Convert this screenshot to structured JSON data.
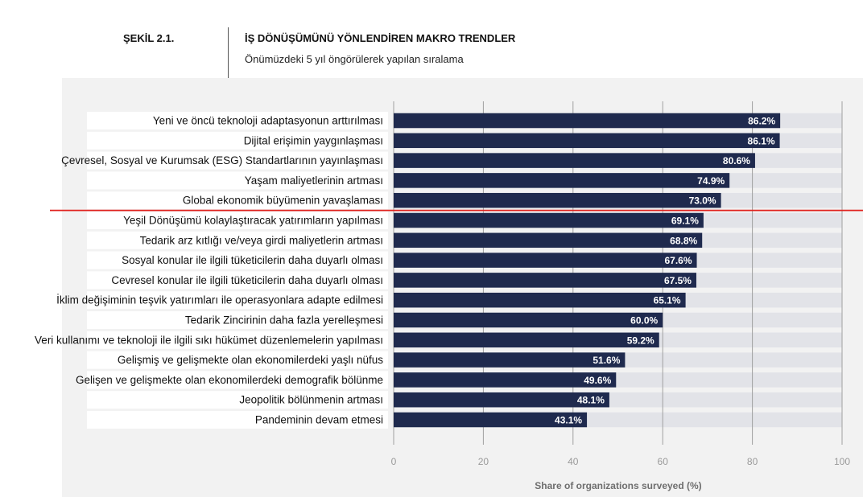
{
  "figure": {
    "label": "ŞEKİL 2.1.",
    "title": "İŞ DÖNÜŞÜMÜNÜ YÖNLENDİREN MAKRO TRENDLER",
    "subtitle": "Önümüzdeki 5 yıl öngörülerek yapılan sıralama"
  },
  "chart_data": {
    "type": "bar",
    "orientation": "horizontal",
    "categories": [
      "Yeni ve öncü teknoloji adaptasyonun arttırılması",
      "Dijital erişimin yaygınlaşması",
      "Çevresel, Sosyal ve Kurumsak (ESG) Standartlarının yayınlaşması",
      "Yaşam maliyetlerinin artması",
      "Global ekonomik büyümenin yavaşlaması",
      "Yeşil Dönüşümü kolaylaştıracak yatırımların yapılması",
      "Tedarik arz kıtlığı ve/veya girdi maliyetlerin artması",
      "Sosyal konular ile ilgili tüketicilerin daha duyarlı olması",
      "Cevresel konular ile ilgili tüketicilerin daha duyarlı olması",
      "İklim değişiminin teşvik yatırımları ile operasyonlara adapte edilmesi",
      "Tedarik Zincirinin daha fazla yerelleşmesi",
      "Veri kullanımı ve teknoloji ile ilgili sıkı hükümet düzenlemelerin yapılması",
      "Gelişmiş ve gelişmekte olan ekonomilerdeki yaşlı nüfus",
      "Gelişen ve gelişmekte olan ekonomilerdeki demografik bölünme",
      "Jeopolitik bölünmenin artması",
      "Pandeminin devam etmesi"
    ],
    "values": [
      86.2,
      86.1,
      80.6,
      74.9,
      73.0,
      69.1,
      68.8,
      67.6,
      67.5,
      65.1,
      60.0,
      59.2,
      51.6,
      49.6,
      48.1,
      43.1
    ],
    "value_labels": [
      "86.2%",
      "86.1%",
      "80.6%",
      "74.9%",
      "73.0%",
      "69.1%",
      "68.8%",
      "67.6%",
      "67.5%",
      "65.1%",
      "60.0%",
      "59.2%",
      "51.6%",
      "49.6%",
      "48.1%",
      "43.1%"
    ],
    "xlim": [
      0,
      100
    ],
    "xticks": [
      0,
      20,
      40,
      60,
      80,
      100
    ],
    "xlabel": "Share of organizations surveyed (%)",
    "grid": true,
    "divider_after_index": 4,
    "colors": {
      "bar": "#1f2a4e",
      "track": "#e2e3e8",
      "divider": "#e0201c",
      "gridline": "#a0a0a0",
      "panel": "#f2f2f2",
      "tick_text": "#9a9a9a"
    }
  }
}
